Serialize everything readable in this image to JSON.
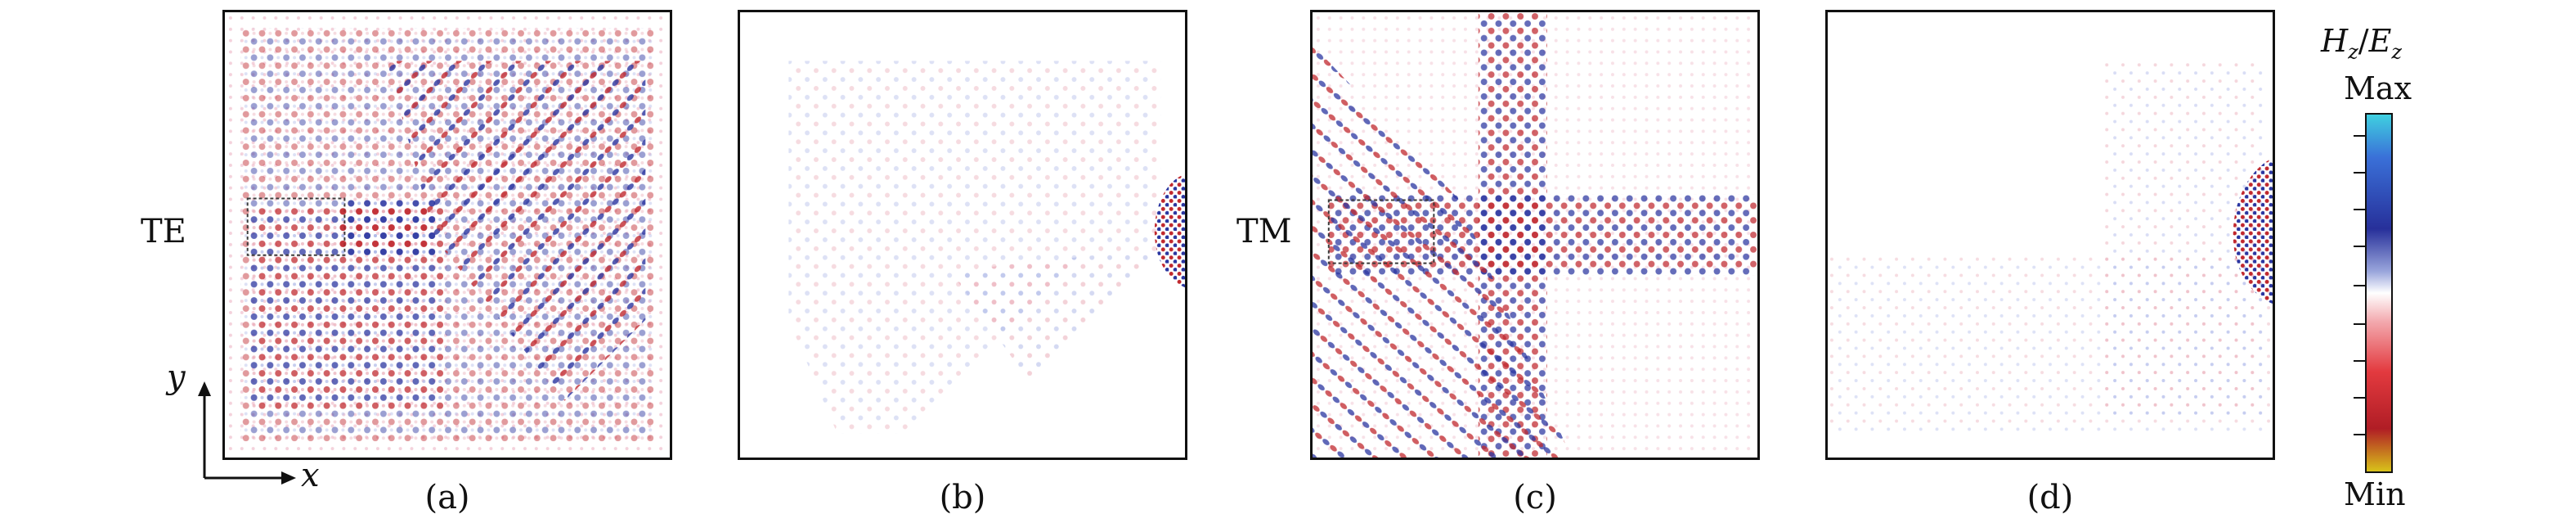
{
  "mode_labels": {
    "te": "TE",
    "tm": "TM"
  },
  "panels": [
    {
      "label": "(a)",
      "mode": "TE"
    },
    {
      "label": "(b)",
      "mode": "TE"
    },
    {
      "label": "(c)",
      "mode": "TM"
    },
    {
      "label": "(d)",
      "mode": "TM"
    }
  ],
  "axes": {
    "x": "x",
    "y": "y"
  },
  "colorbar": {
    "title_h": "H",
    "title_h_sub": "z",
    "title_sep": "/",
    "title_e": "E",
    "title_e_sub": "z",
    "max": "Max",
    "min": "Min",
    "colors": {
      "max": "#3fd0e0",
      "high": "#27309a",
      "zero": "#ffffff",
      "low": "#e33a3f",
      "min": "#d8c21a"
    }
  }
}
